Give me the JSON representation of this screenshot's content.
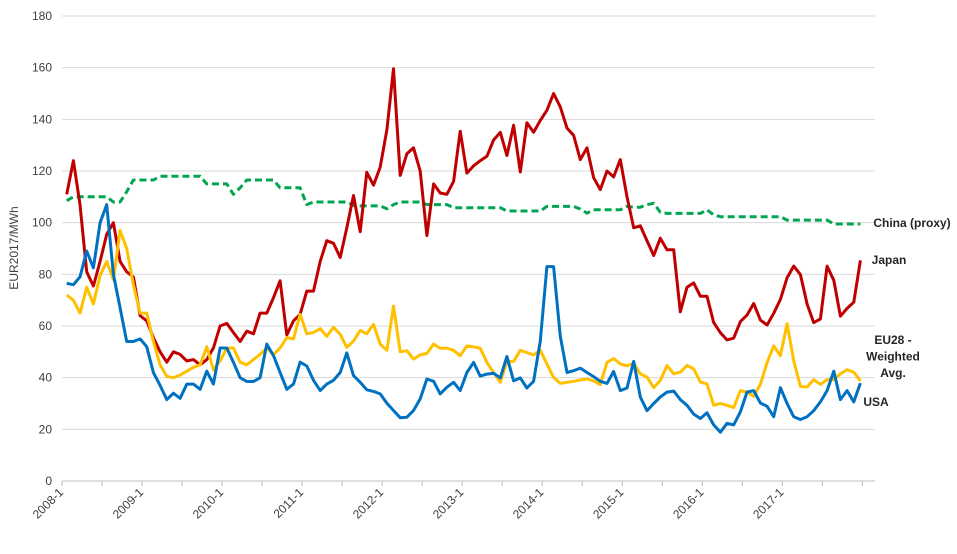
{
  "chart_data": {
    "type": "line",
    "title": "",
    "xlabel": "",
    "ylabel": "EUR2017/MWh",
    "ylim": [
      0,
      180
    ],
    "y_ticks": [
      "0",
      "20",
      "40",
      "60",
      "80",
      "100",
      "120",
      "140",
      "160",
      "180"
    ],
    "x_start": "2008-1",
    "x_frequency": "monthly",
    "x_tick_labels": [
      "2008-1",
      "2009-1",
      "2010-1",
      "2011-1",
      "2012-1",
      "2013-1",
      "2014-1",
      "2015-1",
      "2016-1",
      "2017-1"
    ],
    "grid": true,
    "legend": "inline-right",
    "series": [
      {
        "name": "China (proxy)",
        "label_lines": [
          "China (proxy)"
        ],
        "color": "#00A550",
        "dashed": true,
        "values": [
          108.5,
          110,
          110,
          110,
          110,
          110,
          110,
          108,
          108,
          112,
          116.5,
          116.5,
          116.5,
          116.5,
          118,
          118,
          118,
          118,
          118,
          118,
          118,
          115,
          115,
          115,
          115,
          111,
          113.5,
          116.5,
          116.5,
          116.5,
          116.5,
          116.5,
          113.5,
          113.5,
          113.5,
          113.5,
          107,
          108,
          108,
          108,
          108,
          108,
          108,
          106.7,
          106.5,
          106.5,
          106.5,
          106.5,
          105.4,
          107,
          108,
          108,
          108,
          108,
          107,
          107,
          107,
          107,
          105.8,
          105.8,
          105.8,
          105.8,
          105.8,
          105.8,
          105.8,
          105.8,
          104.5,
          104.5,
          104.5,
          104.5,
          104.5,
          104.5,
          106.3,
          106.3,
          106.3,
          106.3,
          106.3,
          105.3,
          103.7,
          105,
          105,
          105,
          105,
          105,
          106.3,
          106,
          106,
          107,
          107.5,
          104,
          103.6,
          103.6,
          103.6,
          103.6,
          103.6,
          103.6,
          105,
          103,
          102.3,
          102.3,
          102.3,
          102.3,
          102.3,
          102.3,
          102.3,
          102.3,
          102.3,
          102.3,
          101,
          101,
          101,
          101,
          101,
          101,
          101,
          99.5,
          99.5,
          99.5,
          99.5,
          99.5
        ]
      },
      {
        "name": "Japan",
        "label_lines": [
          "Japan"
        ],
        "color": "#C00000",
        "dashed": false,
        "values": [
          111,
          124,
          107,
          81,
          75.5,
          85,
          95.5,
          100,
          85,
          81,
          79,
          64,
          62,
          55.5,
          50,
          46,
          50,
          49,
          46.5,
          47,
          45,
          47,
          51.5,
          60,
          61,
          57.5,
          54,
          58,
          57,
          65,
          65,
          71,
          77.5,
          56.5,
          62,
          64.5,
          73.5,
          73.5,
          85,
          93,
          92,
          86.5,
          98,
          110.5,
          96.5,
          119.5,
          114.5,
          121.5,
          136,
          159.6,
          118.3,
          126.7,
          129,
          120,
          95,
          115,
          111.5,
          111,
          116,
          135.4,
          119.2,
          122,
          124,
          125.7,
          132,
          135,
          126,
          137.7,
          119.6,
          138.7,
          135,
          139.6,
          143.5,
          150,
          144.8,
          136.6,
          133.8,
          124.4,
          129,
          117.4,
          112.8,
          120,
          117.7,
          124.4,
          110,
          98,
          98.8,
          93,
          87.3,
          94,
          89.5,
          89.5,
          65.5,
          75,
          76.7,
          71.5,
          71.5,
          61.3,
          57.4,
          54.6,
          55.3,
          61.7,
          64.2,
          68.7,
          62.3,
          60.4,
          64.9,
          70.3,
          78.7,
          83.2,
          79.9,
          68.5,
          61.3,
          62.7,
          83.2,
          77.7,
          63.8,
          66.8,
          69.2,
          85.4
        ]
      },
      {
        "name": "EU28 - Weighted Avg.",
        "label_lines": [
          "EU28 -",
          "Weighted",
          "Avg."
        ],
        "color": "#FFC000",
        "dashed": false,
        "values": [
          72,
          70,
          65,
          75,
          68.5,
          79.5,
          85,
          78,
          97,
          90,
          76,
          65,
          65,
          54,
          45,
          40.5,
          40,
          41,
          42.5,
          44,
          45,
          52,
          43,
          46.5,
          51.5,
          51.5,
          46,
          45,
          47,
          49,
          51.5,
          49,
          51.5,
          55.5,
          55,
          64.5,
          57,
          57.5,
          59,
          56,
          59.5,
          56.8,
          51.7,
          54.2,
          58.3,
          57,
          60.6,
          53,
          50.6,
          67.7,
          50,
          50.4,
          47.2,
          48.8,
          49.4,
          53,
          51.4,
          51.4,
          50.6,
          48.5,
          52.3,
          51.9,
          51.4,
          45.9,
          42,
          38.2,
          46.3,
          46.3,
          50.6,
          49.7,
          48.8,
          50.6,
          45.3,
          40.1,
          37.8,
          38.2,
          38.6,
          39.1,
          39.5,
          38.8,
          37.3,
          45.9,
          47.4,
          45.3,
          44.6,
          45.6,
          41.5,
          40.2,
          36.1,
          38.9,
          44.7,
          41.5,
          42.1,
          44.7,
          43.4,
          38.3,
          37.6,
          29.3,
          30,
          29.3,
          28.4,
          35,
          34.4,
          32.8,
          37.4,
          45.9,
          52.3,
          48.5,
          60.9,
          46.6,
          36.6,
          36.4,
          39.2,
          37.4,
          39.2,
          39.2,
          41.5,
          43.1,
          42.1,
          38.7
        ]
      },
      {
        "name": "USA",
        "label_lines": [
          "USA"
        ],
        "color": "#0070C0",
        "dashed": false,
        "values": [
          76.5,
          76,
          79,
          89,
          82.5,
          100,
          107,
          80,
          67,
          54,
          54,
          55,
          52,
          42,
          37,
          31.5,
          34,
          32,
          37.5,
          37.5,
          35.5,
          42.5,
          37.5,
          51.5,
          51.5,
          46,
          40,
          38.5,
          38.5,
          40,
          53,
          48.5,
          42,
          35.5,
          37.5,
          46,
          44.5,
          39,
          35,
          37.5,
          39,
          42,
          49.6,
          40.8,
          38.2,
          35.3,
          34.7,
          33.7,
          30.1,
          27.3,
          24.5,
          24.7,
          27.3,
          31.8,
          39.5,
          38.6,
          33.7,
          36.3,
          38.2,
          35,
          42,
          45.9,
          40.6,
          41.4,
          41.7,
          39.9,
          48.2,
          38.8,
          39.9,
          36,
          38.6,
          54.2,
          83,
          83,
          56,
          42,
          42.7,
          43.7,
          42,
          40.4,
          38.6,
          37.8,
          42.4,
          35,
          36,
          46.3,
          32.5,
          27.2,
          30,
          32.5,
          34.4,
          34.8,
          31.5,
          29.3,
          25.9,
          24.2,
          26.4,
          21.7,
          18.9,
          22.3,
          21.7,
          26.8,
          34.4,
          35,
          30.2,
          28.9,
          24.9,
          36.1,
          30,
          24.9,
          23.8,
          24.9,
          27.2,
          30.6,
          35,
          42.5,
          31.5,
          35,
          30.6,
          37.9
        ]
      }
    ]
  }
}
